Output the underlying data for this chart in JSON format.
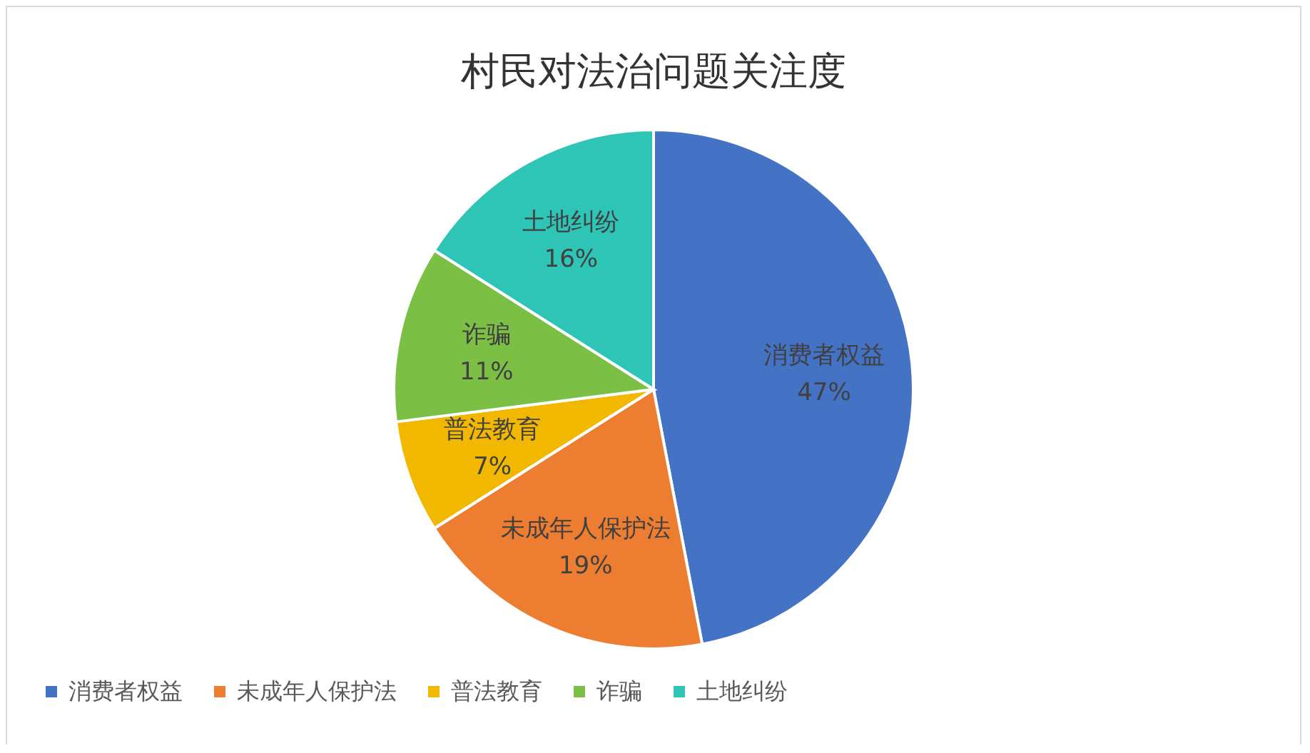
{
  "chart_data": {
    "type": "pie",
    "title": "村民对法治问题关注度",
    "categories": [
      "消费者权益",
      "未成年人保护法",
      "普法教育",
      "诈骗",
      "土地纠纷"
    ],
    "values": [
      47,
      19,
      7,
      11,
      16
    ],
    "value_labels": [
      "47%",
      "19%",
      "7%",
      "11%",
      "16%"
    ],
    "colors": [
      "#4472c4",
      "#ed7d31",
      "#f2b800",
      "#7cbf45",
      "#2ec4b6"
    ],
    "legend": "bottom"
  }
}
